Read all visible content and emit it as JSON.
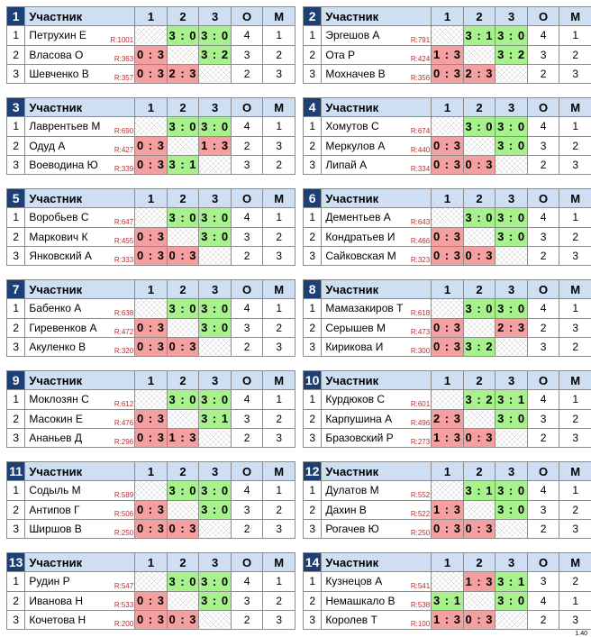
{
  "header": {
    "participant": "Участник",
    "col1": "1",
    "col2": "2",
    "col3": "3",
    "points": "О",
    "place": "М"
  },
  "version": "1.40",
  "groups": [
    {
      "n": "1",
      "players": [
        {
          "num": "1",
          "name": "Петрухин Е",
          "rating": "R:1001",
          "r": [
            "",
            "3 : 0",
            "3 : 0"
          ],
          "pts": "4",
          "place": "1"
        },
        {
          "num": "2",
          "name": "Власова О",
          "rating": "R:363",
          "r": [
            "0 : 3",
            "",
            "3 : 2"
          ],
          "pts": "3",
          "place": "2"
        },
        {
          "num": "3",
          "name": "Шевченко В",
          "rating": "R:357",
          "r": [
            "0 : 3",
            "2 : 3",
            ""
          ],
          "pts": "2",
          "place": "3"
        }
      ]
    },
    {
      "n": "2",
      "players": [
        {
          "num": "1",
          "name": "Эргешов А",
          "rating": "R:791",
          "r": [
            "",
            "3 : 1",
            "3 : 0"
          ],
          "pts": "4",
          "place": "1"
        },
        {
          "num": "2",
          "name": "Ота Р",
          "rating": "R:424",
          "r": [
            "1 : 3",
            "",
            "3 : 2"
          ],
          "pts": "3",
          "place": "2"
        },
        {
          "num": "3",
          "name": "Мохначев В",
          "rating": "R:356",
          "r": [
            "0 : 3",
            "2 : 3",
            ""
          ],
          "pts": "2",
          "place": "3"
        }
      ]
    },
    {
      "n": "3",
      "players": [
        {
          "num": "1",
          "name": "Лаврентьев М",
          "rating": "R:690",
          "r": [
            "",
            "3 : 0",
            "3 : 0"
          ],
          "pts": "4",
          "place": "1"
        },
        {
          "num": "2",
          "name": "Одуд А",
          "rating": "R:427",
          "r": [
            "0 : 3",
            "",
            "1 : 3"
          ],
          "pts": "2",
          "place": "3"
        },
        {
          "num": "3",
          "name": "Воеводина Ю",
          "rating": "R:339",
          "r": [
            "0 : 3",
            "3 : 1",
            ""
          ],
          "pts": "3",
          "place": "2"
        }
      ]
    },
    {
      "n": "4",
      "players": [
        {
          "num": "1",
          "name": "Хомутов С",
          "rating": "R:674",
          "r": [
            "",
            "3 : 0",
            "3 : 0"
          ],
          "pts": "4",
          "place": "1"
        },
        {
          "num": "2",
          "name": "Меркулов А",
          "rating": "R:440",
          "r": [
            "0 : 3",
            "",
            "3 : 0"
          ],
          "pts": "3",
          "place": "2"
        },
        {
          "num": "3",
          "name": "Липай А",
          "rating": "R:334",
          "r": [
            "0 : 3",
            "0 : 3",
            ""
          ],
          "pts": "2",
          "place": "3"
        }
      ]
    },
    {
      "n": "5",
      "players": [
        {
          "num": "1",
          "name": "Воробьев С",
          "rating": "R:647",
          "r": [
            "",
            "3 : 0",
            "3 : 0"
          ],
          "pts": "4",
          "place": "1"
        },
        {
          "num": "2",
          "name": "Маркович К",
          "rating": "R:455",
          "r": [
            "0 : 3",
            "",
            "3 : 0"
          ],
          "pts": "3",
          "place": "2"
        },
        {
          "num": "3",
          "name": "Янковский А",
          "rating": "R:333",
          "r": [
            "0 : 3",
            "0 : 3",
            ""
          ],
          "pts": "2",
          "place": "3"
        }
      ]
    },
    {
      "n": "6",
      "players": [
        {
          "num": "1",
          "name": "Дементьев А",
          "rating": "R:643",
          "r": [
            "",
            "3 : 0",
            "3 : 0"
          ],
          "pts": "4",
          "place": "1"
        },
        {
          "num": "2",
          "name": "Кондратьев И",
          "rating": "R:466",
          "r": [
            "0 : 3",
            "",
            "3 : 0"
          ],
          "pts": "3",
          "place": "2"
        },
        {
          "num": "3",
          "name": "Сайковская М",
          "rating": "R:323",
          "r": [
            "0 : 3",
            "0 : 3",
            ""
          ],
          "pts": "2",
          "place": "3"
        }
      ]
    },
    {
      "n": "7",
      "players": [
        {
          "num": "1",
          "name": "Бабенко А",
          "rating": "R:638",
          "r": [
            "",
            "3 : 0",
            "3 : 0"
          ],
          "pts": "4",
          "place": "1"
        },
        {
          "num": "2",
          "name": "Гиревенков А",
          "rating": "R:472",
          "r": [
            "0 : 3",
            "",
            "3 : 0"
          ],
          "pts": "3",
          "place": "2"
        },
        {
          "num": "3",
          "name": "Акуленко В",
          "rating": "R:320",
          "r": [
            "0 : 3",
            "0 : 3",
            ""
          ],
          "pts": "2",
          "place": "3"
        }
      ]
    },
    {
      "n": "8",
      "players": [
        {
          "num": "1",
          "name": "Мамазакиров Т",
          "rating": "R:618",
          "r": [
            "",
            "3 : 0",
            "3 : 0"
          ],
          "pts": "4",
          "place": "1"
        },
        {
          "num": "2",
          "name": "Серышев М",
          "rating": "R:473",
          "r": [
            "0 : 3",
            "",
            "2 : 3"
          ],
          "pts": "2",
          "place": "3"
        },
        {
          "num": "3",
          "name": "Кирикова И",
          "rating": "R:300",
          "r": [
            "0 : 3",
            "3 : 2",
            ""
          ],
          "pts": "3",
          "place": "2"
        }
      ]
    },
    {
      "n": "9",
      "players": [
        {
          "num": "1",
          "name": "Моклозян С",
          "rating": "R:612",
          "r": [
            "",
            "3 : 0",
            "3 : 0"
          ],
          "pts": "4",
          "place": "1"
        },
        {
          "num": "2",
          "name": "Масокин Е",
          "rating": "R:476",
          "r": [
            "0 : 3",
            "",
            "3 : 1"
          ],
          "pts": "3",
          "place": "2"
        },
        {
          "num": "3",
          "name": "Ананьев Д",
          "rating": "R:296",
          "r": [
            "0 : 3",
            "1 : 3",
            ""
          ],
          "pts": "2",
          "place": "3"
        }
      ]
    },
    {
      "n": "10",
      "players": [
        {
          "num": "1",
          "name": "Курдюков С",
          "rating": "R:601",
          "r": [
            "",
            "3 : 2",
            "3 : 1"
          ],
          "pts": "4",
          "place": "1"
        },
        {
          "num": "2",
          "name": "Карпушина А",
          "rating": "R:496",
          "r": [
            "2 : 3",
            "",
            "3 : 0"
          ],
          "pts": "3",
          "place": "2"
        },
        {
          "num": "3",
          "name": "Бразовский Р",
          "rating": "R:273",
          "r": [
            "1 : 3",
            "0 : 3",
            ""
          ],
          "pts": "2",
          "place": "3"
        }
      ]
    },
    {
      "n": "11",
      "players": [
        {
          "num": "1",
          "name": "Содыль М",
          "rating": "R:589",
          "r": [
            "",
            "3 : 0",
            "3 : 0"
          ],
          "pts": "4",
          "place": "1"
        },
        {
          "num": "2",
          "name": "Антипов Г",
          "rating": "R:506",
          "r": [
            "0 : 3",
            "",
            "3 : 0"
          ],
          "pts": "3",
          "place": "2"
        },
        {
          "num": "3",
          "name": "Ширшов В",
          "rating": "R:250",
          "r": [
            "0 : 3",
            "0 : 3",
            ""
          ],
          "pts": "2",
          "place": "3"
        }
      ]
    },
    {
      "n": "12",
      "players": [
        {
          "num": "1",
          "name": "Дулатов М",
          "rating": "R:552",
          "r": [
            "",
            "3 : 1",
            "3 : 0"
          ],
          "pts": "4",
          "place": "1"
        },
        {
          "num": "2",
          "name": "Дахин В",
          "rating": "R:522",
          "r": [
            "1 : 3",
            "",
            "3 : 0"
          ],
          "pts": "3",
          "place": "2"
        },
        {
          "num": "3",
          "name": "Рогачев Ю",
          "rating": "R:250",
          "r": [
            "0 : 3",
            "0 : 3",
            ""
          ],
          "pts": "2",
          "place": "3"
        }
      ]
    },
    {
      "n": "13",
      "players": [
        {
          "num": "1",
          "name": "Рудин Р",
          "rating": "R:547",
          "r": [
            "",
            "3 : 0",
            "3 : 0"
          ],
          "pts": "4",
          "place": "1"
        },
        {
          "num": "2",
          "name": "Иванова Н",
          "rating": "R:533",
          "r": [
            "0 : 3",
            "",
            "3 : 0"
          ],
          "pts": "3",
          "place": "2"
        },
        {
          "num": "3",
          "name": "Кочетова Н",
          "rating": "R:200",
          "r": [
            "0 : 3",
            "0 : 3",
            ""
          ],
          "pts": "2",
          "place": "3"
        }
      ]
    },
    {
      "n": "14",
      "players": [
        {
          "num": "1",
          "name": "Кузнецов А",
          "rating": "R:541",
          "r": [
            "",
            "1 : 3",
            "3 : 1"
          ],
          "pts": "3",
          "place": "2"
        },
        {
          "num": "2",
          "name": "Немашкало В",
          "rating": "R:538",
          "r": [
            "3 : 1",
            "",
            "3 : 0"
          ],
          "pts": "4",
          "place": "1"
        },
        {
          "num": "3",
          "name": "Королев Т",
          "rating": "R:100",
          "r": [
            "1 : 3",
            "0 : 3",
            ""
          ],
          "pts": "2",
          "place": "3"
        }
      ]
    }
  ]
}
